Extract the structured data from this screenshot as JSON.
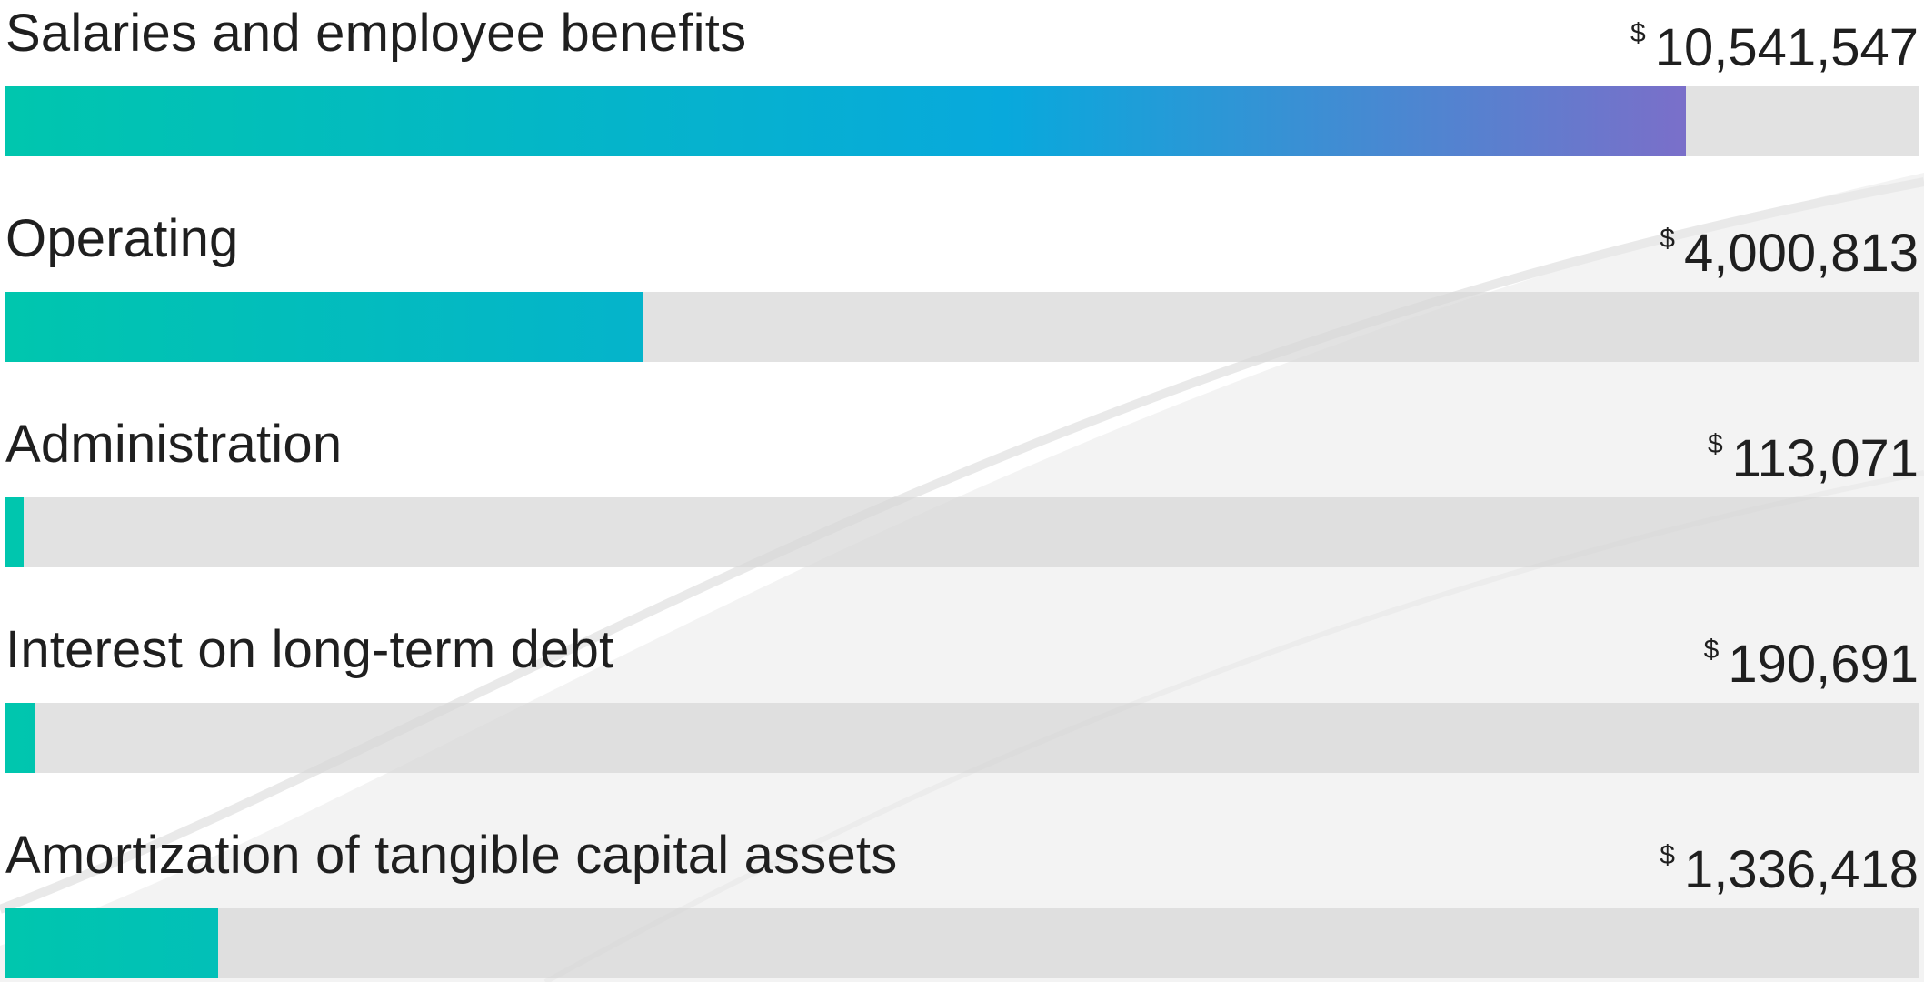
{
  "chart_data": {
    "type": "bar",
    "orientation": "horizontal",
    "currency_symbol": "$",
    "categories": [
      "Salaries and employee benefits",
      "Operating",
      "Administration",
      "Interest on long-term debt",
      "Amortization of tangible capital assets"
    ],
    "values": [
      10541547,
      4000813,
      113071,
      190691,
      1336418
    ],
    "value_labels": [
      "10,541,547",
      "4,000,813",
      "113,071",
      "190,691",
      "1,336,418"
    ],
    "xlim": [
      0,
      12000000
    ],
    "grid": false,
    "legend": "none",
    "colors": {
      "gradient_start": "#00c6ae",
      "gradient_mid": "#08a9dc",
      "gradient_end": "#7c6ec9",
      "track": "#e1e1e1",
      "text": "#1f1f1f"
    }
  }
}
